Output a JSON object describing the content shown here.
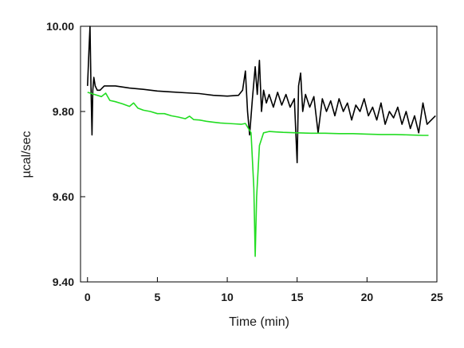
{
  "chart_data": {
    "type": "line",
    "title": "",
    "xlabel": "Time (min)",
    "ylabel": "µcal/sec",
    "xlim": [
      -0.5,
      25
    ],
    "ylim": [
      9.4,
      10.0
    ],
    "x_ticks": [
      0,
      5,
      10,
      15,
      20,
      25
    ],
    "x_tick_labels": [
      "0",
      "5",
      "10",
      "15",
      "20",
      "25"
    ],
    "y_ticks": [
      9.4,
      9.6,
      9.8,
      10.0
    ],
    "y_tick_labels": [
      "9.40",
      "9.60",
      "9.80",
      "10.00"
    ],
    "grid": false,
    "legend": "none",
    "series": [
      {
        "color": "#000000",
        "x": [
          0.0,
          0.1,
          0.18,
          0.25,
          0.32,
          0.38,
          0.45,
          0.55,
          0.7,
          0.9,
          1.2,
          1.6,
          2.0,
          3.0,
          4.0,
          5.0,
          6.0,
          7.0,
          8.0,
          9.0,
          10.0,
          10.8,
          11.1,
          11.3,
          11.45,
          11.6,
          11.8,
          12.0,
          12.15,
          12.3,
          12.45,
          12.6,
          12.8,
          13.0,
          13.3,
          13.6,
          13.9,
          14.2,
          14.5,
          14.8,
          15.0,
          15.1,
          15.25,
          15.4,
          15.6,
          15.9,
          16.2,
          16.5,
          16.8,
          17.1,
          17.4,
          17.7,
          18.0,
          18.3,
          18.6,
          18.9,
          19.2,
          19.5,
          19.8,
          20.1,
          20.4,
          20.7,
          21.0,
          21.3,
          21.6,
          21.9,
          22.2,
          22.5,
          22.8,
          23.1,
          23.4,
          23.7,
          24.0,
          24.3,
          24.6,
          24.9
        ],
        "y": [
          9.86,
          9.94,
          10.0,
          9.86,
          9.745,
          9.85,
          9.88,
          9.86,
          9.85,
          9.85,
          9.86,
          9.86,
          9.86,
          9.855,
          9.852,
          9.848,
          9.846,
          9.844,
          9.842,
          9.838,
          9.836,
          9.838,
          9.85,
          9.895,
          9.8,
          9.745,
          9.83,
          9.905,
          9.84,
          9.92,
          9.8,
          9.85,
          9.82,
          9.84,
          9.81,
          9.845,
          9.815,
          9.84,
          9.81,
          9.83,
          9.68,
          9.86,
          9.89,
          9.8,
          9.84,
          9.81,
          9.835,
          9.75,
          9.83,
          9.8,
          9.825,
          9.79,
          9.83,
          9.8,
          9.82,
          9.78,
          9.815,
          9.8,
          9.83,
          9.79,
          9.81,
          9.78,
          9.82,
          9.77,
          9.8,
          9.785,
          9.81,
          9.77,
          9.8,
          9.76,
          9.79,
          9.75,
          9.82,
          9.77,
          9.78,
          9.79
        ]
      },
      {
        "color": "#22dd22",
        "x": [
          0.0,
          0.5,
          1.0,
          1.3,
          1.6,
          2.0,
          2.5,
          3.0,
          3.3,
          3.6,
          4.0,
          4.5,
          5.0,
          5.5,
          6.0,
          6.5,
          7.0,
          7.3,
          7.6,
          8.0,
          8.5,
          9.0,
          9.5,
          10.0,
          10.5,
          11.0,
          11.3,
          11.7,
          11.9,
          12.0,
          12.1,
          12.3,
          12.6,
          13.0,
          13.5,
          14.0,
          15.0,
          16.0,
          17.0,
          18.0,
          19.0,
          20.0,
          21.0,
          22.0,
          23.0,
          24.0,
          24.4
        ],
        "y": [
          9.845,
          9.84,
          9.835,
          9.843,
          9.826,
          9.823,
          9.818,
          9.812,
          9.82,
          9.808,
          9.803,
          9.8,
          9.795,
          9.795,
          9.79,
          9.787,
          9.783,
          9.789,
          9.781,
          9.78,
          9.777,
          9.775,
          9.773,
          9.772,
          9.771,
          9.77,
          9.772,
          9.75,
          9.62,
          9.46,
          9.6,
          9.72,
          9.75,
          9.753,
          9.752,
          9.751,
          9.75,
          9.749,
          9.749,
          9.748,
          9.748,
          9.747,
          9.746,
          9.746,
          9.745,
          9.744,
          9.744
        ]
      }
    ]
  }
}
